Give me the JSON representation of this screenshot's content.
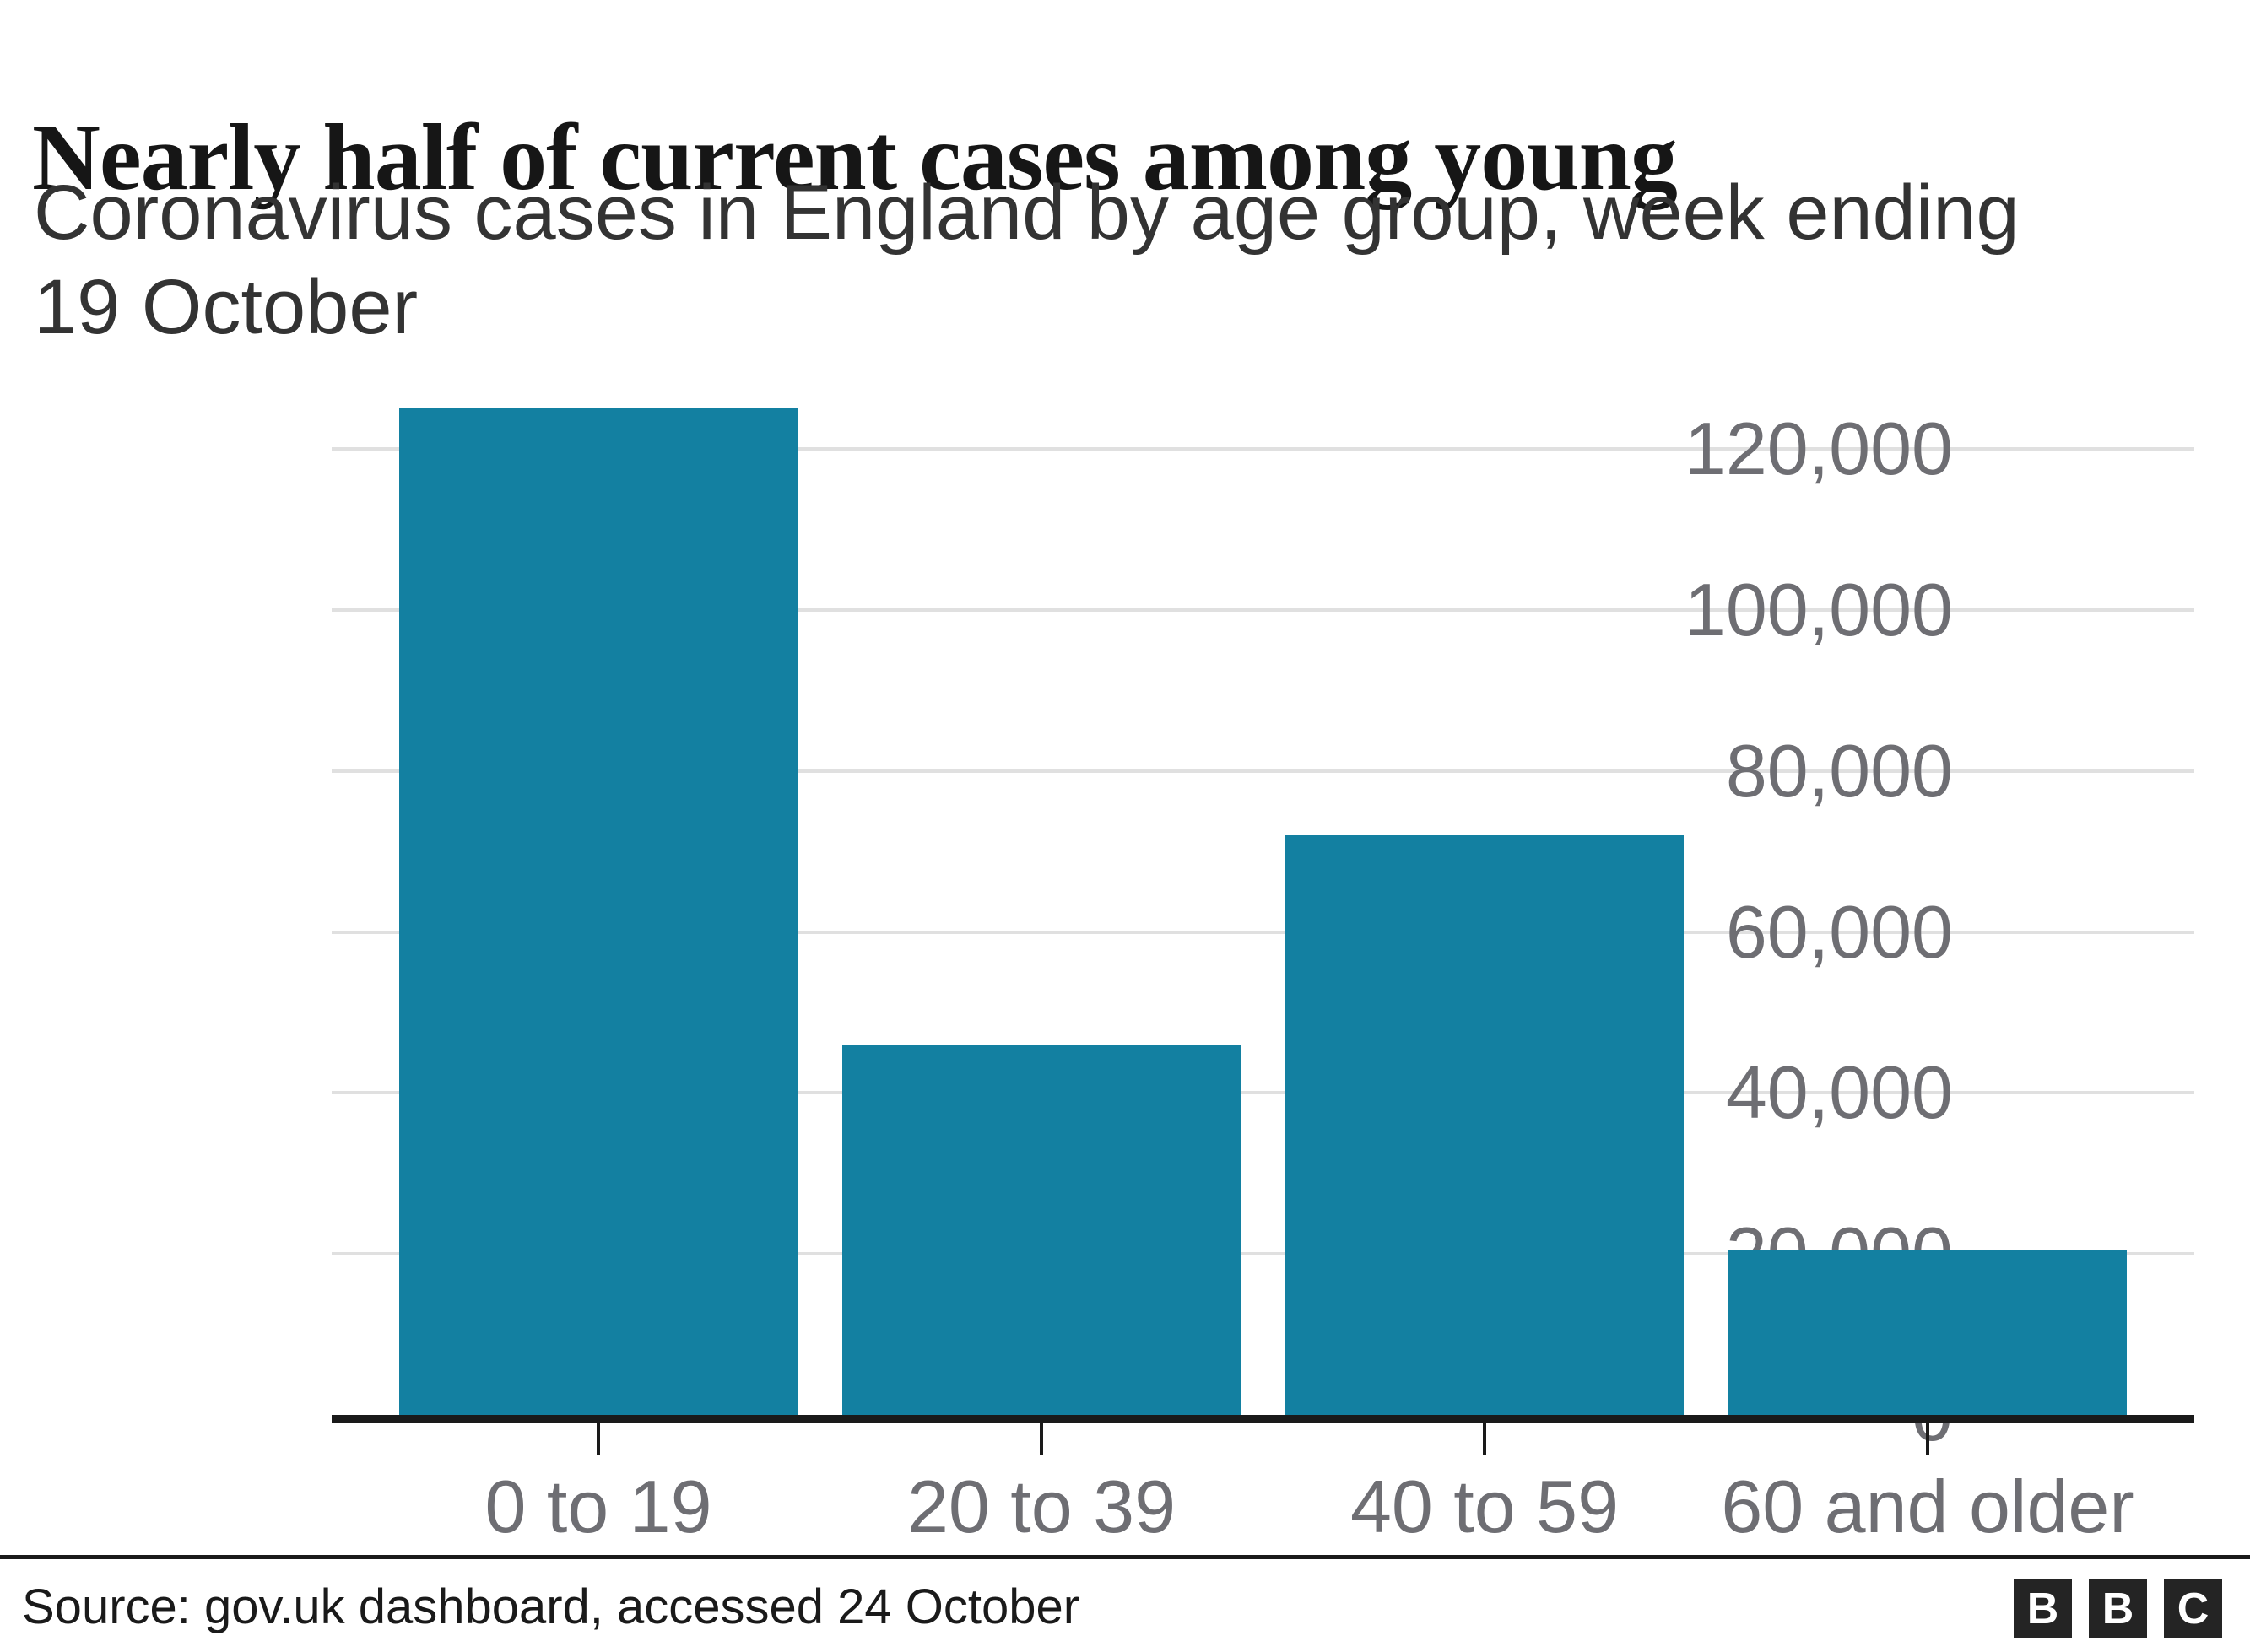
{
  "header": {
    "title": "Nearly half of current cases among young",
    "subtitle_lines": [
      "Coronavirus cases in England by age group, week ending",
      "19 October"
    ]
  },
  "chart_data": {
    "type": "bar",
    "title": "Nearly half of current cases among young",
    "subtitle": "Coronavirus cases in England by age group, week ending 19 October",
    "categories": [
      "0 to 19",
      "20 to 39",
      "40 to 59",
      "60 and older"
    ],
    "values": [
      125000,
      46000,
      72000,
      20500
    ],
    "xlabel": "",
    "ylabel": "",
    "ylim": [
      0,
      131000
    ],
    "grid": true,
    "legend_position": "none",
    "y_ticks": [
      {
        "value": 0,
        "label": "0"
      },
      {
        "value": 20000,
        "label": "20,000"
      },
      {
        "value": 40000,
        "label": "40,000"
      },
      {
        "value": 60000,
        "label": "60,000"
      },
      {
        "value": 80000,
        "label": "80,000"
      },
      {
        "value": 100000,
        "label": "100,000"
      },
      {
        "value": 120000,
        "label": "120,000"
      }
    ]
  },
  "colors": {
    "bar": "#1380A1",
    "gridline": "#e0e0e0",
    "axis": "#1a1a1a",
    "tick_label": "#6e6e73",
    "title": "#161616",
    "subtitle": "#333333"
  },
  "footer": {
    "source": "Source: gov.uk dashboard, accessed 24 October",
    "logo_letters": [
      "B",
      "B",
      "C"
    ]
  }
}
